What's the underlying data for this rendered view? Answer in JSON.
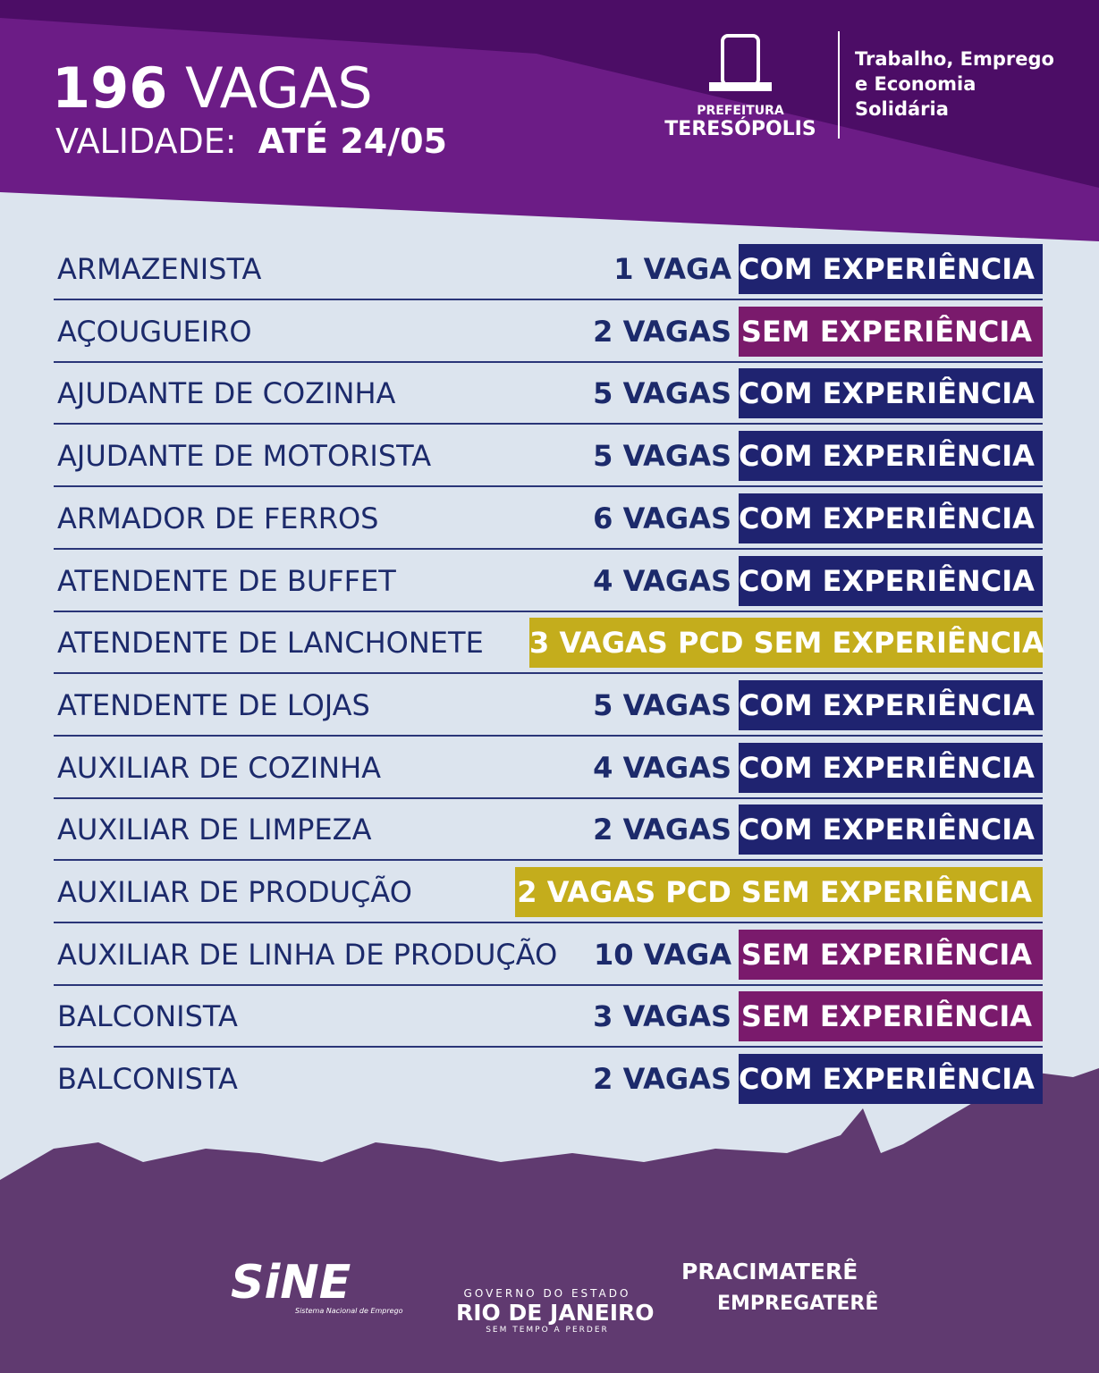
{
  "header": {
    "count": "196",
    "count_word": "VAGAS",
    "validity_label": "VALIDADE:",
    "validity_date": "ATÉ 24/05"
  },
  "logo": {
    "line1": "PREFEITURA",
    "line2": "TERESÓPOLIS",
    "department": [
      "Trabalho, Emprego",
      "e Economia",
      "Solidária"
    ]
  },
  "rows": [
    {
      "role": "ARMAZENISTA",
      "vacancies": "1 VAGA",
      "requirement": "COM EXPERIÊNCIA",
      "color": "#1f2370",
      "pcd": false
    },
    {
      "role": "AÇOUGUEIRO",
      "vacancies": "2 VAGAS",
      "requirement": "SEM EXPERIÊNCIA",
      "color": "#7a1a6c",
      "pcd": false
    },
    {
      "role": "AJUDANTE DE COZINHA",
      "vacancies": "5 VAGAS",
      "requirement": "COM EXPERIÊNCIA",
      "color": "#1f2370",
      "pcd": false
    },
    {
      "role": "AJUDANTE DE MOTORISTA",
      "vacancies": "5 VAGAS",
      "requirement": "COM EXPERIÊNCIA",
      "color": "#1f2370",
      "pcd": false
    },
    {
      "role": "ARMADOR DE FERROS",
      "vacancies": "6 VAGAS",
      "requirement": "COM EXPERIÊNCIA",
      "color": "#1f2370",
      "pcd": false
    },
    {
      "role": "ATENDENTE DE BUFFET",
      "vacancies": "4 VAGAS",
      "requirement": "COM EXPERIÊNCIA",
      "color": "#1f2370",
      "pcd": false
    },
    {
      "role": "ATENDENTE DE LANCHONETE",
      "vacancies": "3 VAGAS PCD",
      "requirement": "SEM EXPERIÊNCIA",
      "color": "#c4ad1c",
      "pcd": true
    },
    {
      "role": "ATENDENTE DE LOJAS",
      "vacancies": "5 VAGAS",
      "requirement": "COM EXPERIÊNCIA",
      "color": "#1f2370",
      "pcd": false
    },
    {
      "role": "AUXILIAR DE COZINHA",
      "vacancies": "4 VAGAS",
      "requirement": "COM EXPERIÊNCIA",
      "color": "#1f2370",
      "pcd": false
    },
    {
      "role": "AUXILIAR DE LIMPEZA",
      "vacancies": "2 VAGAS",
      "requirement": "COM EXPERIÊNCIA",
      "color": "#1f2370",
      "pcd": false
    },
    {
      "role": "AUXILIAR DE PRODUÇÃO",
      "vacancies": "2 VAGAS PCD",
      "requirement": "SEM EXPERIÊNCIA",
      "color": "#c4ad1c",
      "pcd": true
    },
    {
      "role": "AUXILIAR DE LINHA DE PRODUÇÃO",
      "vacancies": "10 VAGA",
      "requirement": "SEM EXPERIÊNCIA",
      "color": "#7a1a6c",
      "pcd": false
    },
    {
      "role": "BALCONISTA",
      "vacancies": "3 VAGAS",
      "requirement": "SEM EXPERIÊNCIA",
      "color": "#7a1a6c",
      "pcd": false
    },
    {
      "role": "BALCONISTA",
      "vacancies": "2 VAGAS",
      "requirement": "COM EXPERIÊNCIA",
      "color": "#1f2370",
      "pcd": false
    }
  ],
  "footer": {
    "sine": "SiNE",
    "sine_sub": "Sistema Nacional de Emprego",
    "rj_top": "GOVERNO DO ESTADO",
    "rj_main": "RIO DE JANEIRO",
    "rj_sub": "SEM TEMPO A PERDER",
    "pra": "PRACIMATERÊ",
    "empre": "EMPREGATERÊ"
  }
}
